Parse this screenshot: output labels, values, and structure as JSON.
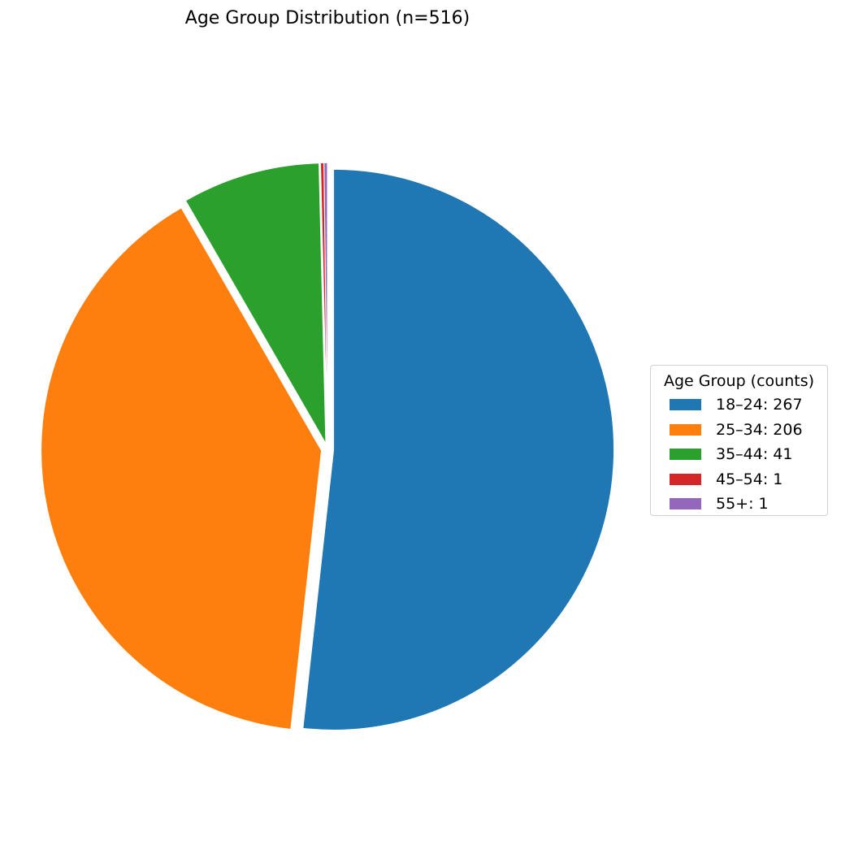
{
  "chart_data": {
    "type": "pie",
    "title": "Age Group Distribution (n=516)",
    "legend_title": "Age Group (counts)",
    "legend_position": "right",
    "start_angle": "top",
    "direction": "clockwise",
    "exploded": true,
    "slices": [
      {
        "label": "18–24",
        "value": 267,
        "legend_text": "18–24: 267",
        "color": "#1f77b4"
      },
      {
        "label": "25–34",
        "value": 206,
        "legend_text": "25–34: 206",
        "color": "#ff7f0e"
      },
      {
        "label": "35–44",
        "value": 41,
        "legend_text": "35–44: 41",
        "color": "#2ca02c"
      },
      {
        "label": "45–54",
        "value": 1,
        "legend_text": "45–54: 1",
        "color": "#d62728"
      },
      {
        "label": "55+",
        "value": 1,
        "legend_text": "55+: 1",
        "color": "#9467bd"
      }
    ]
  }
}
